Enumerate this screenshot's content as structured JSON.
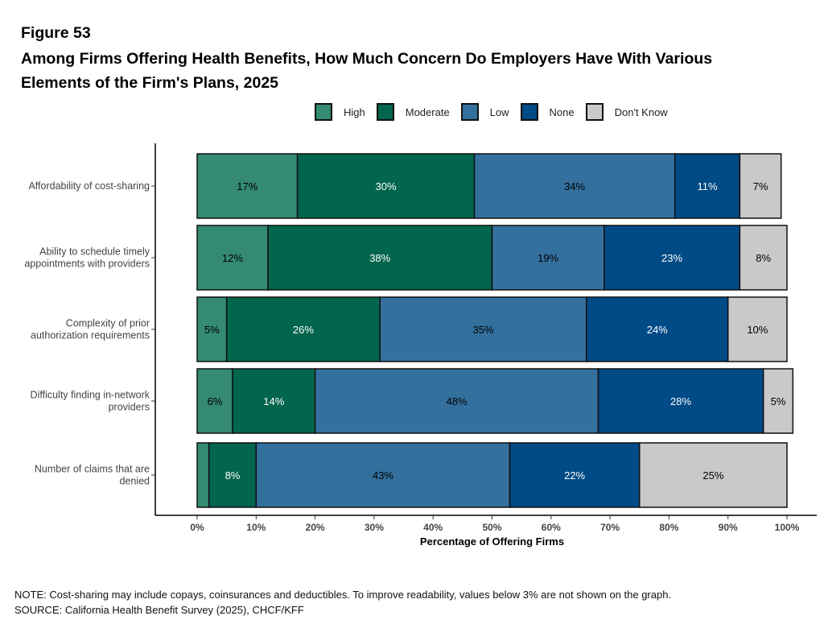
{
  "figure_label": "Figure 53",
  "title_line1": "Among Firms Offering Health Benefits, How Much Concern Do Employers Have With Various",
  "title_line2": "Elements of the Firm's Plans, 2025",
  "note": "NOTE: Cost-sharing may include copays, coinsurances and deductibles. To improve readability, values below 3% are not shown on the graph.",
  "source": "SOURCE: California Health Benefit Survey (2025), CHCF/KFF",
  "chart_data": {
    "type": "bar",
    "orientation": "horizontal",
    "stacked": true,
    "xlabel": "Percentage of Offering Firms",
    "xlim": [
      0,
      100
    ],
    "xticks": [
      "0%",
      "10%",
      "20%",
      "30%",
      "40%",
      "50%",
      "60%",
      "70%",
      "80%",
      "90%",
      "100%"
    ],
    "legend_position": "top",
    "categories": [
      [
        "Affordability of cost-sharing"
      ],
      [
        "Ability to schedule timely",
        "appointments with providers"
      ],
      [
        "Complexity of prior",
        "authorization requirements"
      ],
      [
        "Difficulty finding in-network",
        "providers"
      ],
      [
        "Number of claims that are",
        "denied"
      ]
    ],
    "series": [
      {
        "name": "High",
        "color": "#348a73",
        "label_color": "#000000",
        "values": [
          17,
          12,
          5,
          6,
          2
        ]
      },
      {
        "name": "Moderate",
        "color": "#02654d",
        "label_color": "#ffffff",
        "values": [
          30,
          38,
          26,
          14,
          8
        ]
      },
      {
        "name": "Low",
        "color": "#34709e",
        "label_color": "#000000",
        "values": [
          34,
          19,
          35,
          48,
          43
        ]
      },
      {
        "name": "None",
        "color": "#004a86",
        "label_color": "#ffffff",
        "values": [
          11,
          23,
          24,
          28,
          22
        ]
      },
      {
        "name": "Don't Know",
        "color": "#c9c9c9",
        "label_color": "#000000",
        "values": [
          7,
          8,
          10,
          5,
          25
        ]
      }
    ]
  }
}
